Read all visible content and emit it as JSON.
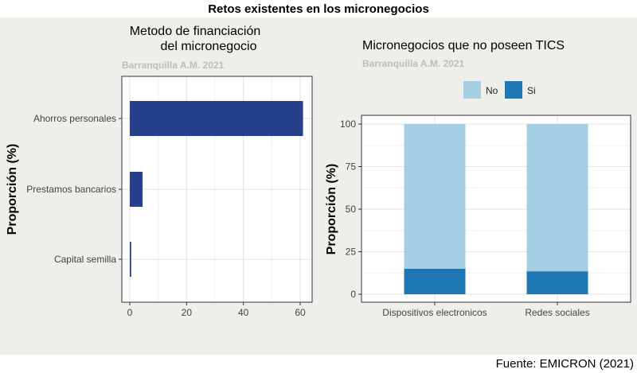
{
  "title": "Retos existentes en los micronegocios",
  "source": "Fuente: EMICRON (2021)",
  "chart_data": [
    {
      "type": "bar",
      "orientation": "horizontal",
      "title": "Metodo de financiación\ndel micronegocio",
      "subtitle": "Barranquilla A.M. 2021",
      "xlabel": "",
      "ylabel": "Proporción (%)",
      "categories": [
        "Ahorros personales",
        "Prestamos bancarios",
        "Capital semilla"
      ],
      "values": [
        61,
        4.5,
        0.5
      ],
      "xlim": [
        0,
        64
      ],
      "xticks": [
        0,
        20,
        40,
        60
      ],
      "grid": true,
      "color": "#27408b"
    },
    {
      "type": "bar",
      "stacked": true,
      "title": "Micronegocios que no poseen TICS",
      "subtitle": "Barranquilla A.M. 2021",
      "xlabel": "",
      "ylabel": "Proporción (%)",
      "categories": [
        "Dispositivos electronicos",
        "Redes sociales"
      ],
      "series": [
        {
          "name": "Si",
          "values": [
            15,
            13.5
          ],
          "color": "#1f78b4"
        },
        {
          "name": "No",
          "values": [
            85,
            86.5
          ],
          "color": "#a6cee3"
        }
      ],
      "ylim": [
        0,
        100
      ],
      "yticks": [
        0,
        25,
        50,
        75,
        100
      ],
      "grid": true,
      "legend": {
        "position": "top",
        "order": [
          "No",
          "Si"
        ]
      }
    }
  ]
}
